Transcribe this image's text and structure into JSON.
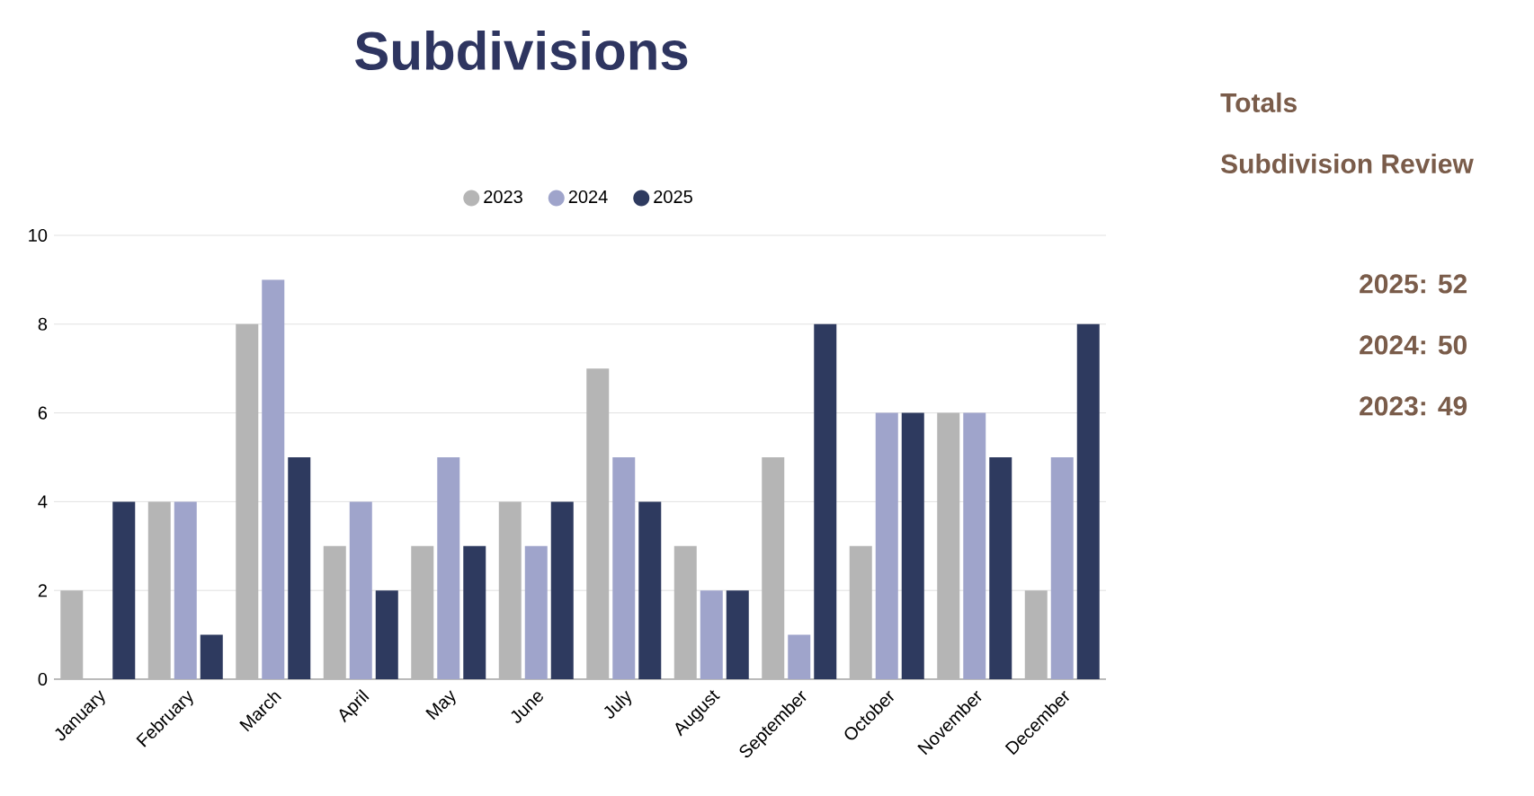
{
  "chart_data": {
    "type": "bar",
    "title": "Subdivisions",
    "categories": [
      "January",
      "February",
      "March",
      "April",
      "May",
      "June",
      "July",
      "August",
      "September",
      "October",
      "November",
      "December"
    ],
    "series": [
      {
        "name": "2023",
        "color": "#b5b5b5",
        "values": [
          2,
          4,
          8,
          3,
          3,
          4,
          7,
          3,
          5,
          3,
          6,
          2
        ]
      },
      {
        "name": "2024",
        "color": "#9fa4cb",
        "values": [
          0,
          4,
          9,
          4,
          5,
          3,
          5,
          2,
          1,
          6,
          6,
          5
        ]
      },
      {
        "name": "2025",
        "color": "#2e3a5f",
        "values": [
          4,
          1,
          5,
          2,
          3,
          4,
          4,
          2,
          8,
          6,
          5,
          8
        ]
      }
    ],
    "ylim": [
      0,
      10
    ],
    "yticks": [
      0,
      2,
      4,
      6,
      8,
      10
    ],
    "grid": "y",
    "legend": "top",
    "annotations": [
      "Totals",
      "Subdivision Review",
      "2025: 52",
      "2024: 50",
      "2023: 49"
    ]
  }
}
